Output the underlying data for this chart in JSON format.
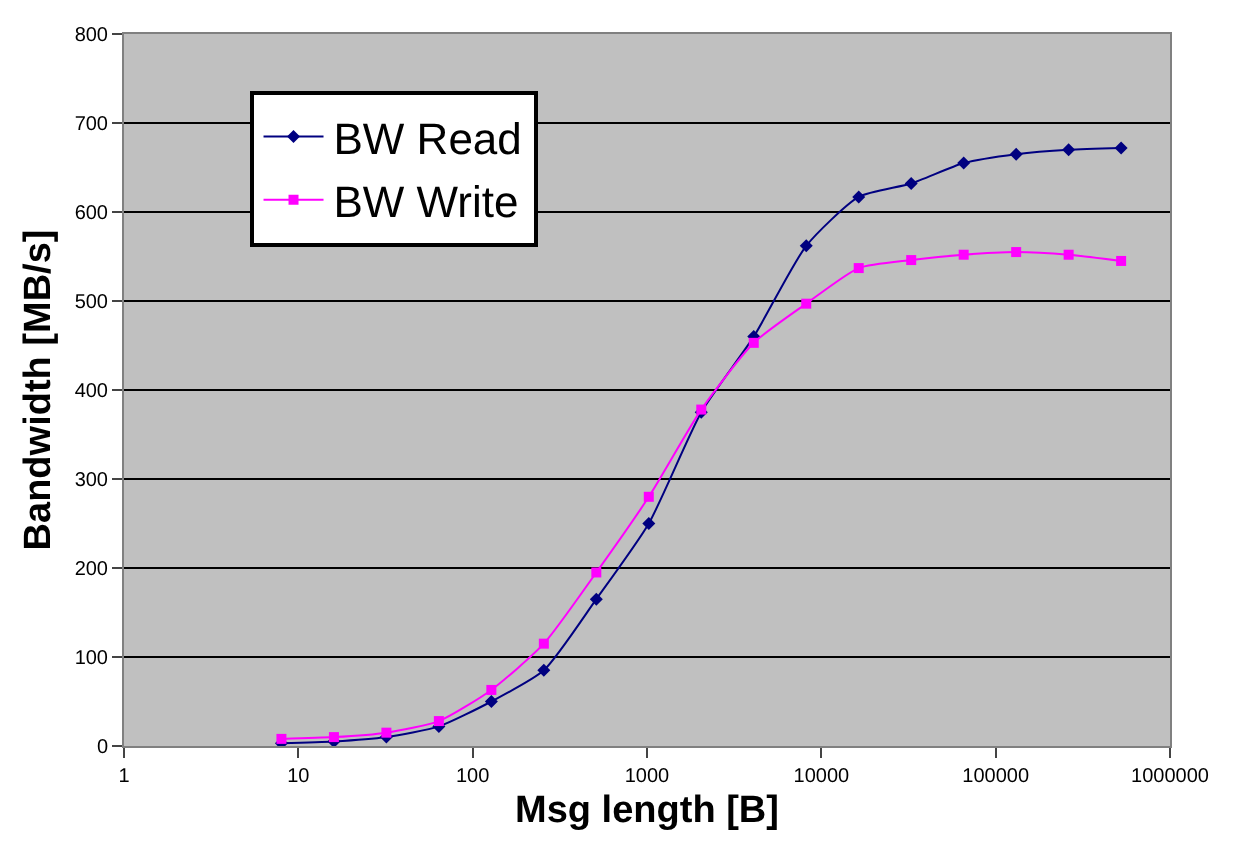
{
  "chart_data": {
    "type": "line",
    "xlabel": "Msg length [B]",
    "ylabel": "Bandwidth [MB/s]",
    "x": [
      8,
      16,
      32,
      64,
      128,
      256,
      512,
      1024,
      2048,
      4096,
      8192,
      16384,
      32768,
      65536,
      131072,
      262144,
      524288
    ],
    "series": [
      {
        "name": "BW Read",
        "color": "#000080",
        "marker": "diamond",
        "values": [
          3,
          5,
          10,
          22,
          50,
          85,
          165,
          250,
          375,
          460,
          562,
          617,
          632,
          655,
          665,
          670,
          672
        ]
      },
      {
        "name": "BW Write",
        "color": "#ff00ff",
        "marker": "square",
        "values": [
          8,
          10,
          15,
          28,
          63,
          115,
          195,
          280,
          378,
          453,
          497,
          537,
          546,
          552,
          555,
          552,
          545
        ]
      }
    ],
    "log": "x",
    "xlim": [
      1,
      1000000
    ],
    "xticks": [
      1,
      10,
      100,
      1000,
      10000,
      100000,
      1000000
    ],
    "ylim": [
      0,
      800
    ],
    "yticks": [
      0,
      100,
      200,
      300,
      400,
      500,
      600,
      700,
      800
    ],
    "grid": "y",
    "legend": "top left",
    "line_style": "solid"
  }
}
